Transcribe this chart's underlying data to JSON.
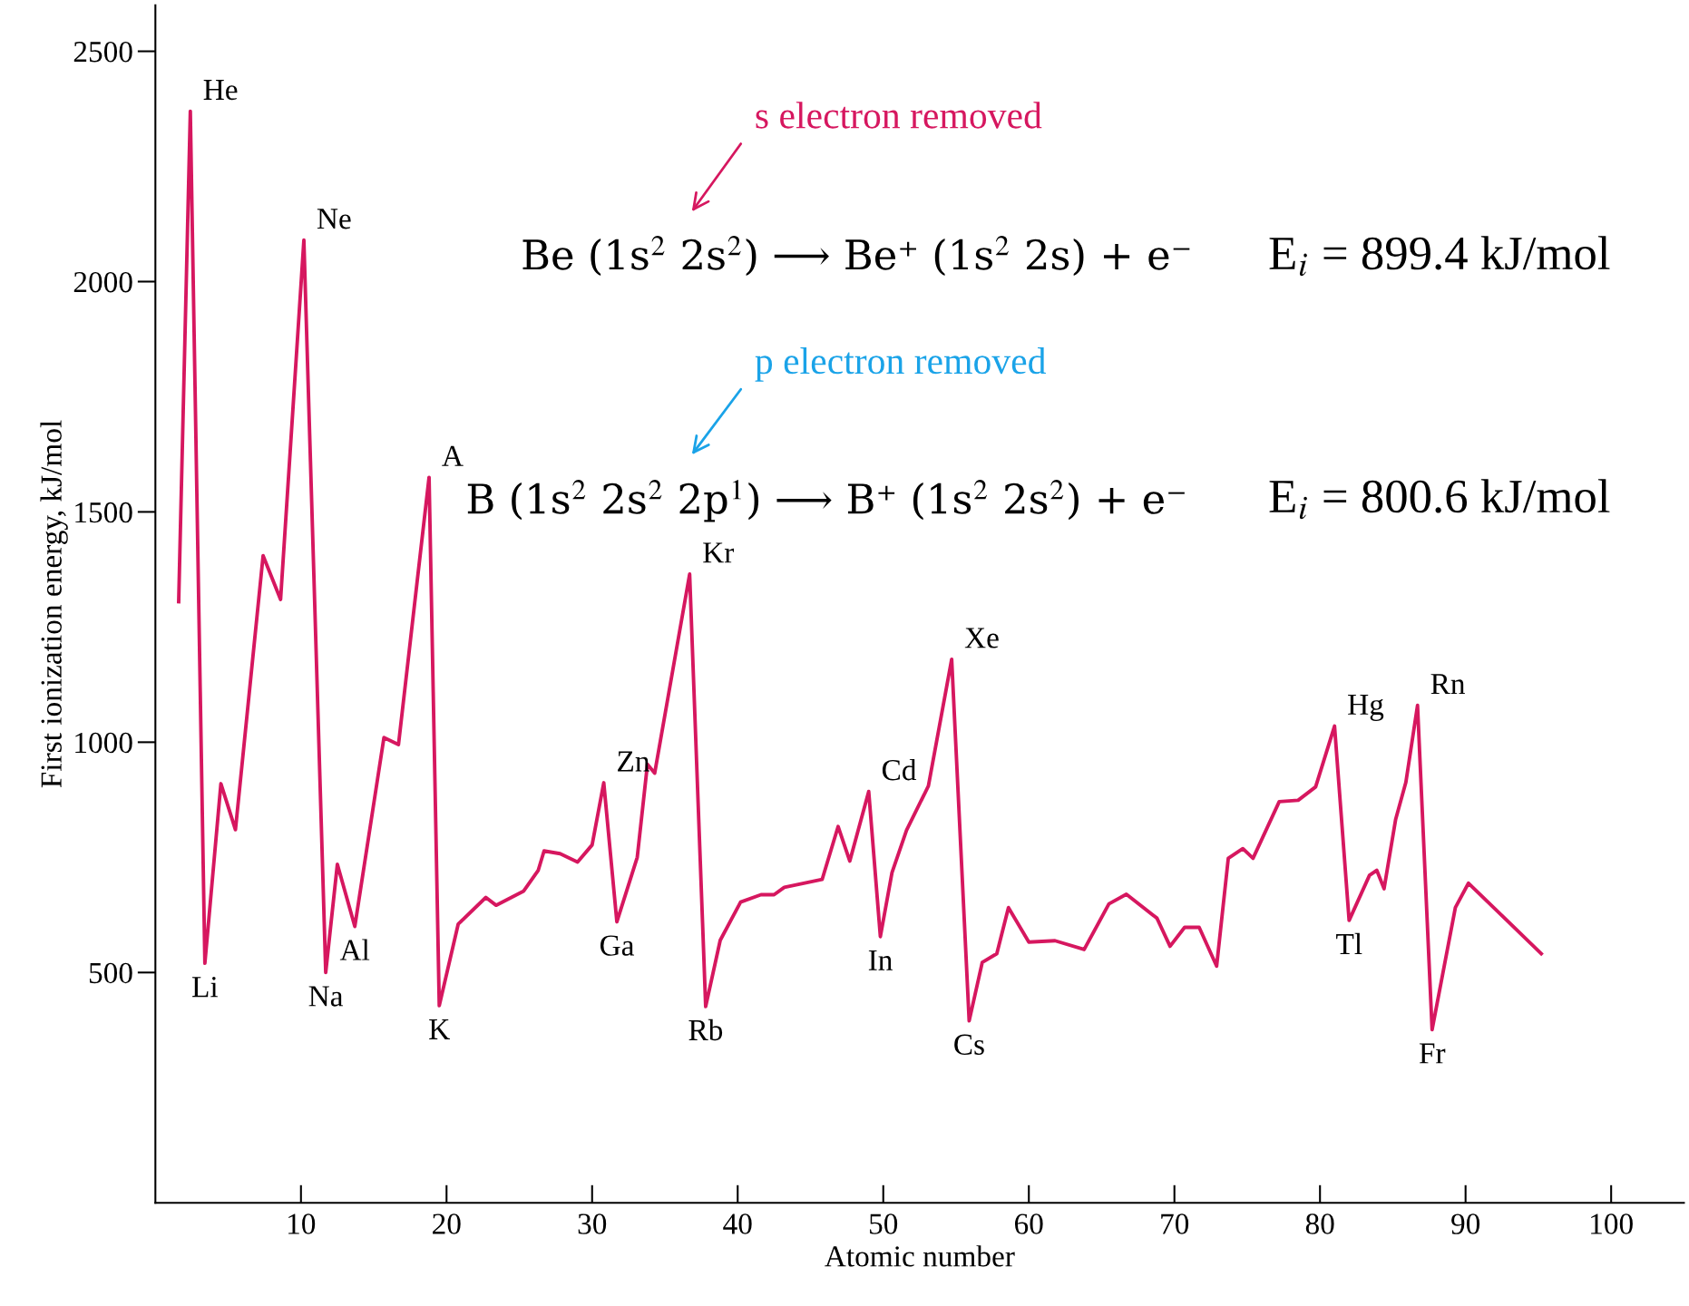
{
  "chart_data": {
    "type": "line",
    "xlabel": "Atomic number",
    "ylabel": "First ionization energy, kJ/mol",
    "xlim": [
      0,
      105
    ],
    "ylim": [
      0,
      2600
    ],
    "xticks": [
      10,
      20,
      30,
      40,
      50,
      60,
      70,
      80,
      90,
      100
    ],
    "yticks": [
      500,
      1000,
      1500,
      2000,
      2500
    ],
    "grid": false,
    "legend": false,
    "marker": "none",
    "line_style": "solid",
    "series": [
      {
        "color": "#d6175f",
        "x": [
          1.6,
          2.4,
          3.4,
          4.5,
          5.5,
          7.4,
          8.6,
          10.2,
          11.7,
          12.5,
          13.7,
          15.7,
          16.7,
          18.8,
          19.5,
          20.8,
          22.7,
          23.4,
          25.3,
          26.3,
          26.7,
          27.8,
          29,
          30,
          30.8,
          31.7,
          33.1,
          33.8,
          34.3,
          36.7,
          37.8,
          38.8,
          40.2,
          41.6,
          42.5,
          43.2,
          45.8,
          46.9,
          47.7,
          49,
          49.8,
          50.6,
          51.6,
          53.1,
          54.7,
          55.9,
          56.8,
          57.8,
          58.6,
          60,
          61.8,
          63.8,
          65.5,
          66.7,
          68.8,
          69.7,
          70.7,
          71.7,
          72.9,
          73.7,
          74.7,
          75.4,
          77.2,
          78.5,
          79.7,
          81,
          82,
          83.4,
          83.9,
          84.4,
          85.2,
          85.9,
          86.7,
          87.7,
          89.3,
          90.2,
          95.2
        ],
        "values": [
          1305,
          2370,
          520,
          910,
          810,
          1405,
          1310,
          2090,
          500,
          735,
          600,
          1010,
          995,
          1575,
          428,
          605,
          663,
          646,
          677,
          722,
          764,
          758,
          740,
          777,
          912,
          610,
          750,
          952,
          933,
          1365,
          426,
          570,
          653,
          669,
          669,
          685,
          702,
          817,
          742,
          893,
          578,
          717,
          809,
          905,
          1180,
          395,
          522,
          541,
          641,
          566,
          569,
          550,
          649,
          670,
          618,
          557,
          598,
          598,
          514,
          748,
          769,
          748,
          871,
          874,
          903,
          1035,
          613,
          711,
          722,
          682,
          833,
          913,
          1080,
          376,
          641,
          694,
          541
        ]
      }
    ],
    "annotations": [
      "s electron removed",
      "Be (1s$^{2}$ 2s$^{2}$) ⟶ Be⁺ (1s$^{2}$ 2s) + e⁻",
      "E$_{i}$ = 899.4 kJ/mol",
      "p electron removed",
      "B (1s$^{2}$ 2s$^{2}$ 2p$^{1}$) ⟶ B⁺ (1s$^{2}$ 2s$^{2}$) + e⁻",
      "E$_{i}$ = 800.6 kJ/mol",
      {
        "text": "He",
        "x": 2.4,
        "y": 2370
      },
      {
        "text": "Li",
        "x": 3.4,
        "y": 520
      },
      {
        "text": "Ne",
        "x": 10.2,
        "y": 2090
      },
      {
        "text": "Na",
        "x": 11.7,
        "y": 500
      },
      {
        "text": "Al",
        "x": 13.7,
        "y": 600
      },
      {
        "text": "A",
        "x": 18.8,
        "y": 1575
      },
      {
        "text": "K",
        "x": 19.5,
        "y": 428
      },
      {
        "text": "Zn",
        "x": 30.8,
        "y": 912
      },
      {
        "text": "Ga",
        "x": 31.7,
        "y": 610
      },
      {
        "text": "Kr",
        "x": 36.7,
        "y": 1365
      },
      {
        "text": "Rb",
        "x": 37.8,
        "y": 426
      },
      {
        "text": "Cd",
        "x": 49,
        "y": 893
      },
      {
        "text": "In",
        "x": 49.8,
        "y": 578
      },
      {
        "text": "Xe",
        "x": 54.7,
        "y": 1180
      },
      {
        "text": "Cs",
        "x": 55.9,
        "y": 395
      },
      {
        "text": "Hg",
        "x": 81,
        "y": 1035
      },
      {
        "text": "Tl",
        "x": 82,
        "y": 613
      },
      {
        "text": "Rn",
        "x": 86.7,
        "y": 1080
      },
      {
        "text": "Fr",
        "x": 87.7,
        "y": 376
      }
    ]
  }
}
